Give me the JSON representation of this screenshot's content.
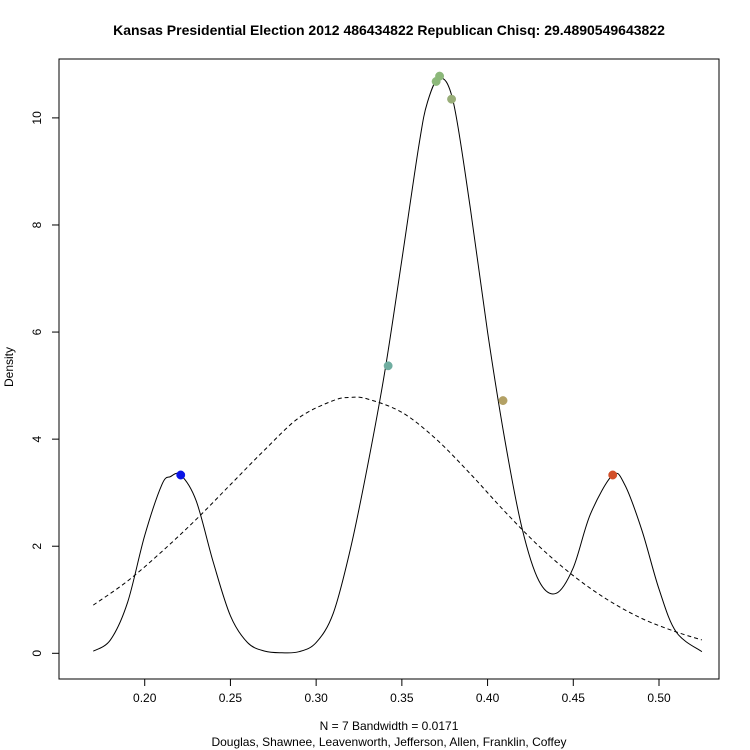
{
  "chart_data": {
    "type": "line",
    "title": "Kansas Presidential Election 2012 486434822 Republican Chisq: 29.4890549643822",
    "xlabel_line1": "N = 7   Bandwidth = 0.0171",
    "xlabel_line2": "Douglas, Shawnee, Leavenworth, Jefferson, Allen, Franklin, Coffey",
    "ylabel": "Density",
    "xlim": [
      0.15,
      0.535
    ],
    "ylim": [
      -0.48,
      11.1
    ],
    "x_ticks": [
      0.2,
      0.25,
      0.3,
      0.35,
      0.4,
      0.45,
      0.5
    ],
    "x_tick_labels": [
      "0.20",
      "0.25",
      "0.30",
      "0.35",
      "0.40",
      "0.45",
      "0.50"
    ],
    "y_ticks": [
      0,
      2,
      4,
      6,
      8,
      10
    ],
    "y_tick_labels": [
      "0",
      "2",
      "4",
      "6",
      "8",
      "10"
    ],
    "grid": false,
    "series": [
      {
        "style": "solid",
        "x": [
          0.17,
          0.18,
          0.19,
          0.2,
          0.21,
          0.215,
          0.221,
          0.23,
          0.24,
          0.25,
          0.26,
          0.27,
          0.28,
          0.29,
          0.3,
          0.31,
          0.32,
          0.33,
          0.34,
          0.35,
          0.36,
          0.365,
          0.372,
          0.38,
          0.39,
          0.4,
          0.41,
          0.42,
          0.43,
          0.44,
          0.45,
          0.46,
          0.473,
          0.48,
          0.49,
          0.5,
          0.51,
          0.525
        ],
        "y": [
          0.04,
          0.25,
          0.95,
          2.2,
          3.15,
          3.3,
          3.33,
          2.85,
          1.7,
          0.7,
          0.2,
          0.04,
          0.01,
          0.03,
          0.2,
          0.75,
          1.95,
          3.5,
          5.25,
          7.35,
          9.5,
          10.3,
          10.75,
          10.3,
          8.3,
          6.0,
          4.0,
          2.35,
          1.35,
          1.12,
          1.6,
          2.6,
          3.33,
          3.15,
          2.3,
          1.2,
          0.4,
          0.03
        ]
      },
      {
        "style": "dashed",
        "x": [
          0.17,
          0.19,
          0.21,
          0.23,
          0.25,
          0.27,
          0.29,
          0.31,
          0.32,
          0.33,
          0.35,
          0.37,
          0.39,
          0.41,
          0.43,
          0.45,
          0.47,
          0.49,
          0.51,
          0.525
        ],
        "y": [
          0.9,
          1.35,
          1.9,
          2.5,
          3.15,
          3.8,
          4.4,
          4.72,
          4.78,
          4.75,
          4.5,
          4.0,
          3.35,
          2.65,
          2.0,
          1.45,
          1.0,
          0.65,
          0.4,
          0.25
        ]
      }
    ],
    "points": [
      {
        "x": 0.221,
        "y": 3.33,
        "color": "#0a14e6"
      },
      {
        "x": 0.342,
        "y": 5.37,
        "color": "#6fada0"
      },
      {
        "x": 0.37,
        "y": 10.68,
        "color": "#8cb87a"
      },
      {
        "x": 0.372,
        "y": 10.78,
        "color": "#8cb87a"
      },
      {
        "x": 0.379,
        "y": 10.35,
        "color": "#98ad78"
      },
      {
        "x": 0.409,
        "y": 4.72,
        "color": "#b3a165"
      },
      {
        "x": 0.473,
        "y": 3.33,
        "color": "#d24f2a"
      }
    ]
  }
}
